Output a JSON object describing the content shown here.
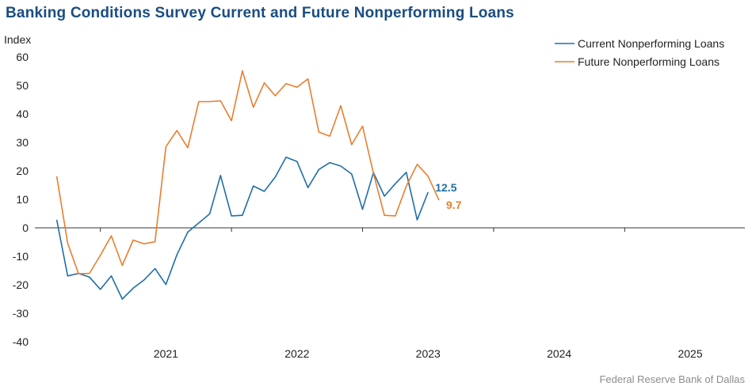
{
  "title": "Banking Conditions Survey Current and Future Nonperforming Loans",
  "source": "Federal Reserve Bank of Dallas",
  "chart_data": {
    "type": "line",
    "title": "Banking Conditions Survey Current and Future Nonperforming Loans",
    "ylabel": "Index",
    "xlabel": "",
    "ylim": [
      -40,
      60
    ],
    "yticks": [
      -40,
      -30,
      -20,
      -10,
      0,
      10,
      20,
      30,
      40,
      50,
      60
    ],
    "xlim": [
      "2020-07",
      "2025-12"
    ],
    "year_labels": [
      "2021",
      "2022",
      "2023",
      "2024",
      "2025"
    ],
    "grid": false,
    "legend_position": "top-right",
    "x": [
      "2020-09",
      "2020-10",
      "2020-11",
      "2020-12",
      "2021-01",
      "2021-02",
      "2021-03",
      "2021-04",
      "2021-05",
      "2021-06",
      "2021-07",
      "2021-08",
      "2021-09",
      "2021-10",
      "2021-11",
      "2021-12",
      "2022-01",
      "2022-02",
      "2022-03",
      "2022-04",
      "2022-05",
      "2022-06",
      "2022-07",
      "2022-08",
      "2022-09",
      "2022-10",
      "2022-11",
      "2022-12",
      "2023-01",
      "2023-02",
      "2023-03",
      "2023-04",
      "2023-05",
      "2023-06",
      "2023-07",
      "2023-08",
      "2023-09",
      "2023-10",
      "2023-11",
      "2023-12",
      "2024-01",
      "2024-02",
      "2024-03",
      "2024-04",
      "2024-05",
      "2024-06",
      "2024-07",
      "2024-08",
      "2024-09",
      "2024-10",
      "2024-11",
      "2024-12"
    ],
    "series": [
      {
        "name": "Current Nonperforming Loans",
        "color": "#1f6ea8",
        "end_label": "12.5",
        "points": [
          [
            "2020-09",
            2.8
          ],
          [
            "2020-10",
            -16.9
          ],
          [
            "2020-11",
            -16.0
          ],
          [
            "2020-12",
            -17.3
          ],
          [
            "2021-01",
            -21.6
          ],
          [
            "2021-02",
            -16.9
          ],
          [
            "2021-03",
            -25.0
          ],
          [
            "2021-04",
            -21.2
          ],
          [
            "2021-05",
            -18.3
          ],
          [
            "2021-06",
            -14.3
          ],
          [
            "2021-07",
            -19.9
          ],
          [
            "2021-08",
            -9.5
          ],
          [
            "2021-09",
            -1.5
          ],
          [
            "2021-10",
            1.7
          ],
          [
            "2021-11",
            4.9
          ],
          [
            "2021-12",
            18.4
          ],
          [
            "2022-01",
            4.2
          ],
          [
            "2022-02",
            4.4
          ],
          [
            "2022-03",
            14.7
          ],
          [
            "2022-04",
            12.8
          ],
          [
            "2022-05",
            17.8
          ],
          [
            "2022-06",
            24.8
          ],
          [
            "2022-07",
            23.3
          ],
          [
            "2022-08",
            14.1
          ],
          [
            "2022-09",
            20.5
          ],
          [
            "2022-10",
            22.9
          ],
          [
            "2022-11",
            21.7
          ],
          [
            "2022-12",
            18.9
          ],
          [
            "2023-01",
            6.5
          ],
          [
            "2023-02",
            19.4
          ],
          [
            "2023-03",
            11.1
          ],
          [
            "2023-04",
            15.5
          ],
          [
            "2023-05",
            19.5
          ],
          [
            "2023-06",
            2.8
          ],
          [
            "2023-07",
            12.5
          ]
        ]
      },
      {
        "name": "Future Nonperforming Loans",
        "color": "#e87e2e",
        "end_label": "9.7",
        "points": [
          [
            "2020-09",
            18.1
          ],
          [
            "2020-10",
            -5.4
          ],
          [
            "2020-11",
            -16.1
          ],
          [
            "2020-12",
            -16.0
          ],
          [
            "2021-01",
            -9.6
          ],
          [
            "2021-02",
            -2.8
          ],
          [
            "2021-03",
            -13.2
          ],
          [
            "2021-04",
            -4.3
          ],
          [
            "2021-05",
            -5.6
          ],
          [
            "2021-06",
            -4.9
          ],
          [
            "2021-07",
            28.5
          ],
          [
            "2021-08",
            34.2
          ],
          [
            "2021-09",
            28.1
          ],
          [
            "2021-10",
            44.3
          ],
          [
            "2021-11",
            44.3
          ],
          [
            "2021-12",
            44.6
          ],
          [
            "2022-01",
            37.6
          ],
          [
            "2022-02",
            55.1
          ],
          [
            "2022-03",
            42.3
          ],
          [
            "2022-04",
            50.9
          ],
          [
            "2022-05",
            46.4
          ],
          [
            "2022-06",
            50.6
          ],
          [
            "2022-07",
            49.4
          ],
          [
            "2022-08",
            52.3
          ],
          [
            "2022-09",
            33.6
          ],
          [
            "2022-10",
            32.2
          ],
          [
            "2022-11",
            42.9
          ],
          [
            "2022-12",
            29.2
          ],
          [
            "2023-01",
            35.7
          ],
          [
            "2023-02",
            19.1
          ],
          [
            "2023-03",
            4.4
          ],
          [
            "2023-04",
            4.2
          ],
          [
            "2023-05",
            14.6
          ],
          [
            "2023-06",
            22.3
          ],
          [
            "2023-07",
            18.1
          ],
          [
            "2023-08",
            9.7
          ]
        ]
      }
    ]
  }
}
